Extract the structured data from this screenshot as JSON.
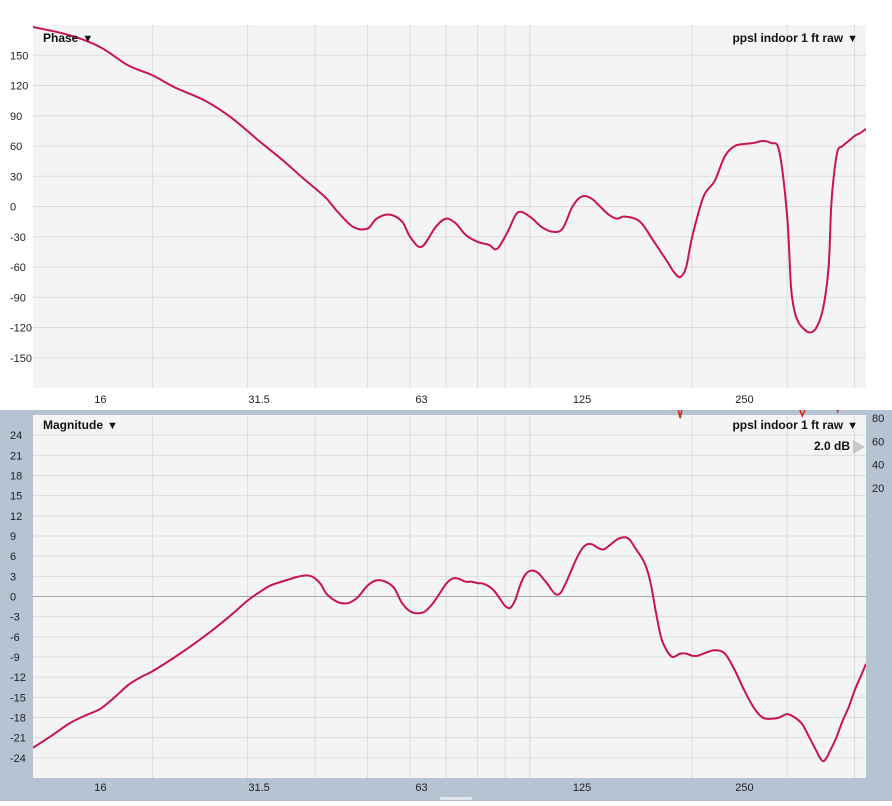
{
  "phase_panel": {
    "title": "Phase",
    "dropdown_arrow": "▼",
    "measurement_label": "ppsl indoor 1 ft raw",
    "measurement_arrow": "▼"
  },
  "magnitude_panel": {
    "title": "Magnitude",
    "dropdown_arrow": "▼",
    "measurement_label": "ppsl indoor 1 ft raw",
    "measurement_arrow": "▼",
    "scale_label": "2.0 dB"
  },
  "colors": {
    "trace": "#c8154e",
    "coherence": "#d9261c",
    "grid": "#dcdcdc",
    "plot_background": "#f4f4f4",
    "frame_background": "#b5c3d3"
  },
  "icons": [
    "dropdown-triangle-icon",
    "scale-arrow-icon"
  ],
  "chart_data": [
    {
      "type": "line",
      "title": "Phase",
      "x_scale": "log",
      "xlim": [
        12,
        420
      ],
      "ylim": [
        -180,
        180
      ],
      "x_ticks": [
        "16",
        "31.5",
        "63",
        "125",
        "250"
      ],
      "x_tick_values": [
        16,
        31.5,
        63,
        125,
        250
      ],
      "y_ticks": [
        "150",
        "120",
        "90",
        "60",
        "30",
        "0",
        "-30",
        "-60",
        "-90",
        "-120",
        "-150"
      ],
      "y_tick_values": [
        150,
        120,
        90,
        60,
        30,
        0,
        -30,
        -60,
        -90,
        -120,
        -150
      ],
      "grid": true,
      "series": [
        {
          "name": "ppsl indoor 1 ft raw",
          "x": [
            12,
            14,
            16,
            18,
            20,
            22,
            25,
            28,
            31.5,
            35,
            38,
            40,
            42,
            44,
            47,
            50,
            52,
            55,
            58,
            60,
            63,
            67,
            70,
            73,
            76,
            80,
            84,
            87,
            91,
            95,
            100,
            105,
            110,
            115,
            120,
            125,
            130,
            135,
            140,
            145,
            150,
            160,
            170,
            180,
            185,
            190,
            195,
            200,
            210,
            220,
            230,
            240,
            250,
            260,
            270,
            280,
            290,
            300,
            305,
            310,
            315,
            320,
            330,
            340,
            350,
            358,
            362,
            366,
            372,
            380,
            390,
            400,
            410,
            420
          ],
          "y": [
            178,
            170,
            158,
            140,
            130,
            118,
            105,
            88,
            65,
            45,
            28,
            18,
            8,
            -5,
            -20,
            -22,
            -12,
            -8,
            -15,
            -30,
            -40,
            -20,
            -12,
            -17,
            -28,
            -35,
            -38,
            -42,
            -25,
            -6,
            -10,
            -20,
            -25,
            -22,
            0,
            10,
            8,
            0,
            -8,
            -12,
            -10,
            -15,
            -35,
            -55,
            -65,
            -70,
            -60,
            -30,
            10,
            25,
            50,
            60,
            62,
            63,
            65,
            63,
            55,
            -10,
            -80,
            -105,
            -115,
            -120,
            -125,
            -120,
            -100,
            -60,
            0,
            30,
            55,
            60,
            65,
            70,
            73,
            77
          ]
        }
      ]
    },
    {
      "type": "line",
      "title": "Magnitude",
      "x_scale": "log",
      "xlim": [
        12,
        420
      ],
      "ylim": [
        -27,
        27
      ],
      "x_ticks": [
        "16",
        "31.5",
        "63",
        "125",
        "250"
      ],
      "x_tick_values": [
        16,
        31.5,
        63,
        125,
        250
      ],
      "y_ticks": [
        "24",
        "21",
        "18",
        "15",
        "12",
        "9",
        "6",
        "3",
        "0",
        "-3",
        "-6",
        "-9",
        "-12",
        "-15",
        "-18",
        "-21",
        "-24"
      ],
      "y_tick_values": [
        24,
        21,
        18,
        15,
        12,
        9,
        6,
        3,
        0,
        -3,
        -6,
        -9,
        -12,
        -15,
        -18,
        -21,
        -24
      ],
      "right_axis_ticks": [
        "80",
        "60",
        "40",
        "20"
      ],
      "right_axis_tick_values": [
        80,
        60,
        40,
        20
      ],
      "grid": true,
      "series": [
        {
          "name": "ppsl indoor 1 ft raw",
          "x": [
            12,
            13,
            14,
            15,
            16,
            17,
            18,
            19,
            20,
            22,
            24,
            26,
            28,
            30,
            31.5,
            33,
            35,
            37,
            38,
            39,
            40,
            41,
            42,
            44,
            46,
            48,
            50,
            52,
            54,
            56,
            58,
            60,
            62,
            64,
            66,
            68,
            70,
            72,
            74,
            76,
            78,
            80,
            82,
            84,
            86,
            88,
            90,
            92,
            94,
            96,
            98,
            100,
            102,
            104,
            106,
            108,
            110,
            112,
            114,
            116,
            118,
            120,
            122,
            125,
            128,
            131,
            134,
            137,
            140,
            143,
            146,
            150,
            153,
            156,
            159,
            162,
            165,
            168,
            171,
            175,
            178,
            181,
            184,
            187,
            190,
            195,
            200,
            205,
            210,
            220,
            230,
            240,
            250,
            260,
            270,
            280,
            290,
            300,
            310,
            320,
            330,
            340,
            345,
            350,
            355,
            360,
            370,
            380,
            390,
            400,
            410,
            420
          ],
          "y": [
            -22.5,
            -20.7,
            -18.9,
            -17.7,
            -16.7,
            -15,
            -13.2,
            -12,
            -11.1,
            -9,
            -6.9,
            -4.8,
            -2.7,
            -0.6,
            0.6,
            1.6,
            2.3,
            2.9,
            3.1,
            3.1,
            2.7,
            1.8,
            0.4,
            -0.8,
            -1,
            -0.1,
            1.6,
            2.4,
            2.2,
            1.3,
            -1,
            -2.2,
            -2.5,
            -2.2,
            -1.1,
            0.4,
            1.9,
            2.7,
            2.6,
            2.2,
            2.2,
            2,
            1.9,
            1.5,
            0.8,
            -0.3,
            -1.4,
            -1.7,
            -0.5,
            1.7,
            3.2,
            3.8,
            3.8,
            3.4,
            2.6,
            1.8,
            0.9,
            0.3,
            0.5,
            1.6,
            2.9,
            4.3,
            5.6,
            7.1,
            7.8,
            7.7,
            7.2,
            7,
            7.5,
            8.1,
            8.6,
            8.8,
            8.5,
            7.5,
            6.5,
            5.5,
            4,
            1.5,
            -2,
            -6,
            -7.5,
            -8.5,
            -9,
            -8.8,
            -8.5,
            -8.5,
            -8.8,
            -8.8,
            -8.5,
            -8,
            -8.5,
            -11,
            -14,
            -16.5,
            -18,
            -18.2,
            -18,
            -17.5,
            -18,
            -19,
            -21,
            -23,
            -24,
            -24.5,
            -24,
            -23,
            -21,
            -18.5,
            -16.5,
            -14,
            -12,
            -10
          ]
        },
        {
          "name": "coherence",
          "axis": "right",
          "x": [
            12,
            40,
            43,
            46,
            60,
            80,
            120,
            180,
            187,
            190,
            193,
            200,
            250,
            270,
            275,
            280,
            300,
            315,
            320,
            325,
            330,
            345,
            360,
            368,
            372,
            380,
            400,
            420
          ],
          "y": [
            98,
            98,
            96,
            98,
            98,
            98,
            98,
            98,
            95,
            80,
            96,
            98,
            98,
            98,
            94,
            96,
            98,
            90,
            82,
            89,
            98,
            94,
            98,
            95,
            86,
            97,
            98,
            99
          ]
        }
      ]
    }
  ],
  "x_axis_labels": [
    "16",
    "31.5",
    "63",
    "125",
    "250"
  ]
}
